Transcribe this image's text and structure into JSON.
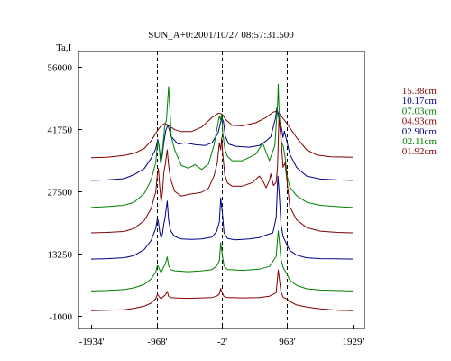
{
  "chart_data": {
    "type": "line",
    "title": "SUN_A+0:2001/10/27 08:57:31.500",
    "ylabel": "Ta,I",
    "xlabel": "",
    "xlim": [
      -1934,
      1929
    ],
    "ylim": [
      -1000,
      62000
    ],
    "x_ticks": [
      {
        "value": -1934,
        "label": "-1934'"
      },
      {
        "value": -968,
        "label": "-968'"
      },
      {
        "value": -2,
        "label": "-2'"
      },
      {
        "value": 963,
        "label": "963'"
      },
      {
        "value": 1929,
        "label": "1929'"
      }
    ],
    "y_ticks": [
      {
        "value": -1000,
        "label": "-1000"
      },
      {
        "value": 13250,
        "label": "13250"
      },
      {
        "value": 27500,
        "label": "27500"
      },
      {
        "value": 41750,
        "label": "41750"
      },
      {
        "value": 56000,
        "label": "56000"
      }
    ],
    "vlines": [
      -968,
      -2,
      963
    ],
    "grid": false,
    "legend_position": "right",
    "series": [
      {
        "name": "15.38cm",
        "color": "#800000",
        "x": [
          -1934,
          -1700,
          -1450,
          -1300,
          -1150,
          -1050,
          -950,
          -900,
          -850,
          -800,
          -700,
          -600,
          -450,
          -300,
          -150,
          -50,
          0,
          50,
          150,
          300,
          500,
          650,
          750,
          800,
          850,
          950,
          1100,
          1250,
          1400,
          1600,
          1929
        ],
        "y": [
          35200,
          35300,
          35700,
          36200,
          37300,
          39000,
          41500,
          42500,
          43000,
          42700,
          41600,
          41200,
          41200,
          42200,
          44400,
          45400,
          45200,
          44000,
          42600,
          42500,
          43200,
          44400,
          45600,
          45800,
          45200,
          43200,
          39800,
          37000,
          35800,
          35400,
          35300
        ]
      },
      {
        "name": "10.17cm",
        "color": "#000080",
        "x": [
          -1934,
          -1700,
          -1450,
          -1300,
          -1150,
          -1050,
          -980,
          -950,
          -930,
          -900,
          -880,
          -860,
          -830,
          -800,
          -750,
          -650,
          -550,
          -400,
          -250,
          -150,
          -60,
          -20,
          0,
          20,
          50,
          100,
          200,
          400,
          550,
          650,
          720,
          790,
          810,
          840,
          880,
          900,
          920,
          960,
          1000,
          1100,
          1250,
          1450,
          1700,
          1929
        ],
        "y": [
          30000,
          30100,
          30400,
          31300,
          32700,
          35000,
          37200,
          39400,
          37500,
          34300,
          36000,
          38700,
          41500,
          42700,
          40000,
          38300,
          38600,
          38200,
          38000,
          38600,
          40800,
          43400,
          44200,
          43500,
          40000,
          38300,
          37800,
          37600,
          38000,
          39000,
          40000,
          44300,
          46600,
          44200,
          41800,
          39800,
          41300,
          38700,
          36000,
          33000,
          31000,
          30300,
          30100,
          30000
        ]
      },
      {
        "name": "07.03cm",
        "color": "#008000",
        "x": [
          -1934,
          -1700,
          -1450,
          -1300,
          -1150,
          -1050,
          -980,
          -950,
          -930,
          -910,
          -880,
          -850,
          -820,
          -790,
          -770,
          -750,
          -700,
          -600,
          -500,
          -400,
          -300,
          -200,
          -120,
          -70,
          -40,
          -20,
          -5,
          10,
          40,
          80,
          150,
          300,
          500,
          600,
          700,
          780,
          820,
          830,
          840,
          870,
          900,
          930,
          960,
          1000,
          1100,
          1250,
          1450,
          1700,
          1929
        ],
        "y": [
          23800,
          24000,
          24300,
          25000,
          27000,
          30000,
          34000,
          39000,
          38000,
          34000,
          36800,
          42000,
          44000,
          51500,
          46000,
          40000,
          37000,
          33400,
          32800,
          33600,
          32500,
          33800,
          38000,
          42200,
          44800,
          43800,
          45200,
          41000,
          37200,
          35500,
          34500,
          34500,
          36000,
          38500,
          34500,
          38000,
          47000,
          52000,
          47000,
          39000,
          38000,
          35500,
          31000,
          28500,
          26500,
          25000,
          24300,
          24000,
          23800
        ]
      },
      {
        "name": "04.93cm",
        "color": "#800000",
        "x": [
          -1934,
          -1700,
          -1450,
          -1300,
          -1150,
          -1050,
          -980,
          -955,
          -940,
          -920,
          -900,
          -880,
          -860,
          -840,
          -810,
          -790,
          -760,
          -700,
          -600,
          -500,
          -400,
          -300,
          -200,
          -120,
          -70,
          -40,
          -20,
          -5,
          10,
          40,
          80,
          150,
          300,
          450,
          550,
          600,
          650,
          700,
          720,
          760,
          800,
          820,
          840,
          870,
          900,
          930,
          960,
          1000,
          1100,
          1250,
          1450,
          1700,
          1929
        ],
        "y": [
          18000,
          18100,
          18300,
          19000,
          20800,
          23500,
          27300,
          31500,
          32700,
          28500,
          25000,
          27300,
          31800,
          33500,
          37000,
          33500,
          30300,
          27500,
          26400,
          26800,
          27000,
          27300,
          28200,
          31000,
          34000,
          38600,
          37000,
          39800,
          36200,
          31300,
          29400,
          28700,
          28700,
          29500,
          31000,
          30000,
          28300,
          30000,
          31500,
          28800,
          29600,
          33000,
          44000,
          40000,
          33000,
          34000,
          29700,
          24000,
          21000,
          19200,
          18400,
          18100,
          18000
        ]
      },
      {
        "name": "02.90cm",
        "color": "#000080",
        "x": [
          -1934,
          -1700,
          -1450,
          -1300,
          -1150,
          -1050,
          -980,
          -955,
          -940,
          -920,
          -900,
          -880,
          -860,
          -840,
          -810,
          -790,
          -760,
          -700,
          -600,
          -450,
          -300,
          -150,
          -80,
          -40,
          -20,
          -10,
          5,
          30,
          80,
          200,
          400,
          550,
          650,
          750,
          800,
          825,
          845,
          870,
          900,
          950,
          1000,
          1100,
          1250,
          1450,
          1700,
          1929
        ],
        "y": [
          12000,
          12100,
          12300,
          12800,
          14200,
          16200,
          19000,
          21300,
          20500,
          18200,
          16800,
          17800,
          20000,
          21700,
          25300,
          21000,
          18500,
          17200,
          16600,
          16500,
          16600,
          17000,
          18300,
          20500,
          26000,
          24500,
          22500,
          18000,
          16700,
          16400,
          16600,
          16900,
          17500,
          18000,
          21500,
          31000,
          27000,
          20000,
          17200,
          15500,
          14000,
          12900,
          12300,
          12100,
          12050,
          12000
        ]
      },
      {
        "name": "02.11cm",
        "color": "#008000",
        "x": [
          -1934,
          -1700,
          -1450,
          -1300,
          -1150,
          -1050,
          -980,
          -955,
          -940,
          -920,
          -900,
          -870,
          -840,
          -810,
          -790,
          -760,
          -700,
          -500,
          -300,
          -150,
          -80,
          -40,
          -20,
          -10,
          5,
          30,
          80,
          300,
          550,
          700,
          800,
          830,
          850,
          870,
          900,
          960,
          1000,
          1100,
          1250,
          1450,
          1700,
          1929
        ],
        "y": [
          4700,
          4800,
          5000,
          5400,
          6200,
          7400,
          9000,
          10500,
          10300,
          9500,
          8900,
          10000,
          10800,
          12500,
          10500,
          9600,
          9300,
          9100,
          9300,
          9600,
          10400,
          11600,
          15800,
          14500,
          12800,
          10400,
          9600,
          9400,
          9700,
          10300,
          12600,
          18500,
          15500,
          12000,
          10100,
          8500,
          7200,
          6000,
          5200,
          4900,
          4800,
          4700
        ]
      },
      {
        "name": "01.92cm",
        "color": "#800000",
        "x": [
          -1934,
          -1700,
          -1450,
          -1300,
          -1150,
          -1050,
          -980,
          -955,
          -940,
          -920,
          -900,
          -870,
          -840,
          -810,
          -790,
          -760,
          -700,
          -500,
          -300,
          -150,
          -80,
          -40,
          -20,
          -10,
          5,
          30,
          80,
          300,
          550,
          700,
          800,
          830,
          850,
          870,
          900,
          960,
          1000,
          1100,
          1250,
          1450,
          1700,
          1929
        ],
        "y": [
          200,
          300,
          400,
          700,
          1200,
          1900,
          2900,
          3900,
          3700,
          3200,
          2900,
          3400,
          3700,
          4600,
          3500,
          3200,
          3100,
          3000,
          3100,
          3200,
          3500,
          4000,
          5300,
          4700,
          4200,
          3400,
          3200,
          3100,
          3200,
          3500,
          4300,
          9500,
          7000,
          4500,
          3300,
          2800,
          2300,
          1500,
          1000,
          600,
          300,
          200
        ]
      }
    ]
  }
}
